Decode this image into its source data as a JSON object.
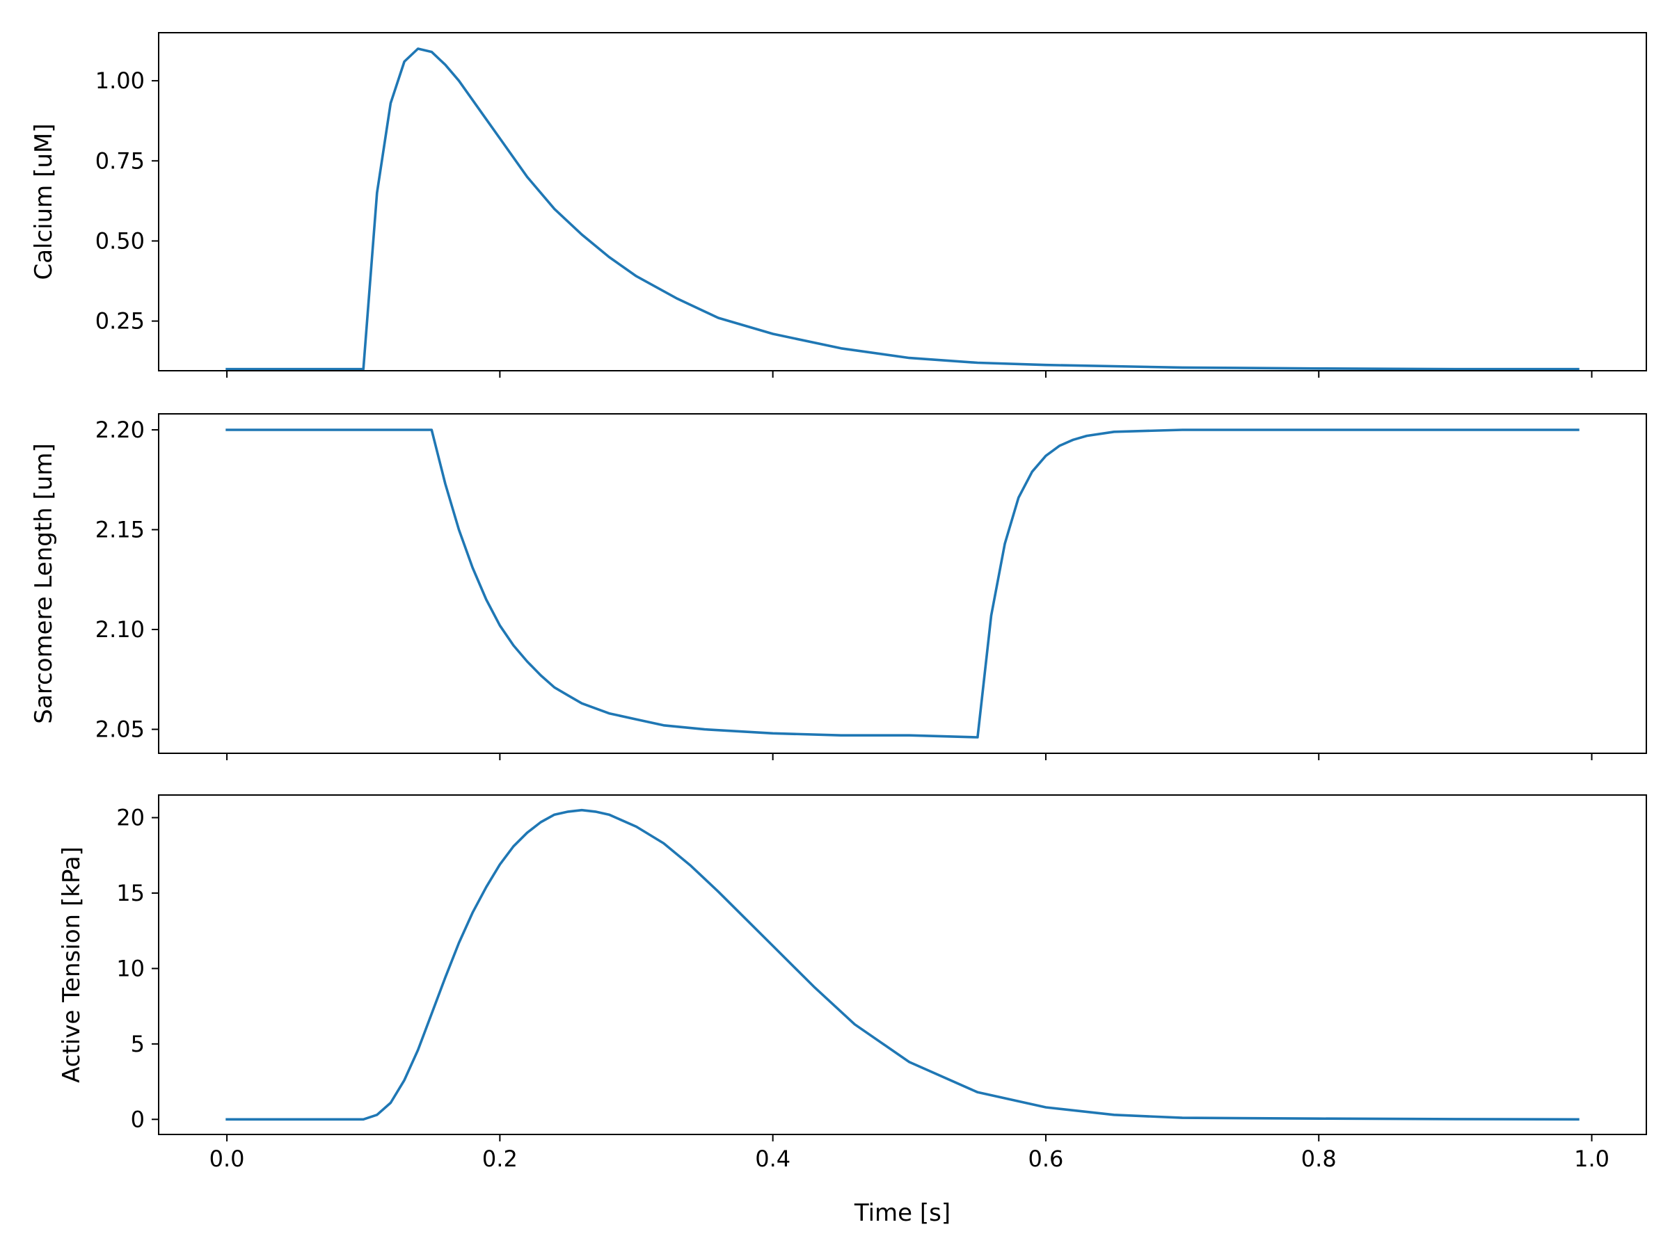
{
  "colors": {
    "series": "#1f77b4",
    "axes": "#000000",
    "background": "#ffffff"
  },
  "chart_data": [
    {
      "type": "line",
      "xlabel": "",
      "ylabel": "Calcium [uM]",
      "xlim": [
        -0.05,
        1.04
      ],
      "ylim": [
        0.095,
        1.15
      ],
      "xticks": [
        0.0,
        0.2,
        0.4,
        0.6,
        0.8,
        1.0
      ],
      "xtick_labels": [
        "",
        "",
        "",
        "",
        "",
        ""
      ],
      "yticks": [
        0.25,
        0.5,
        0.75,
        1.0
      ],
      "ytick_labels": [
        "0.25",
        "0.50",
        "0.75",
        "1.00"
      ],
      "grid": false,
      "series": [
        {
          "x": [
            0.0,
            0.1,
            0.11,
            0.12,
            0.13,
            0.14,
            0.15,
            0.16,
            0.17,
            0.18,
            0.19,
            0.2,
            0.22,
            0.24,
            0.26,
            0.28,
            0.3,
            0.33,
            0.36,
            0.4,
            0.45,
            0.5,
            0.55,
            0.6,
            0.7,
            0.8,
            0.9,
            0.99
          ],
          "y": [
            0.1,
            0.1,
            0.65,
            0.93,
            1.06,
            1.1,
            1.09,
            1.05,
            1.0,
            0.94,
            0.88,
            0.82,
            0.7,
            0.6,
            0.52,
            0.45,
            0.39,
            0.32,
            0.26,
            0.21,
            0.165,
            0.135,
            0.12,
            0.113,
            0.105,
            0.102,
            0.1,
            0.1
          ]
        }
      ]
    },
    {
      "type": "line",
      "xlabel": "",
      "ylabel": "Sarcomere Length [um]",
      "xlim": [
        -0.05,
        1.04
      ],
      "ylim": [
        2.038,
        2.208
      ],
      "xticks": [
        0.0,
        0.2,
        0.4,
        0.6,
        0.8,
        1.0
      ],
      "xtick_labels": [
        "",
        "",
        "",
        "",
        "",
        ""
      ],
      "yticks": [
        2.05,
        2.1,
        2.15,
        2.2
      ],
      "ytick_labels": [
        "2.05",
        "2.10",
        "2.15",
        "2.20"
      ],
      "grid": false,
      "series": [
        {
          "x": [
            0.0,
            0.15,
            0.16,
            0.17,
            0.18,
            0.19,
            0.2,
            0.21,
            0.22,
            0.23,
            0.24,
            0.25,
            0.26,
            0.28,
            0.3,
            0.32,
            0.35,
            0.4,
            0.45,
            0.5,
            0.55,
            0.56,
            0.57,
            0.58,
            0.59,
            0.6,
            0.61,
            0.62,
            0.63,
            0.65,
            0.7,
            0.8,
            0.99
          ],
          "y": [
            2.2,
            2.2,
            2.173,
            2.15,
            2.131,
            2.115,
            2.102,
            2.092,
            2.084,
            2.077,
            2.071,
            2.067,
            2.063,
            2.058,
            2.055,
            2.052,
            2.05,
            2.048,
            2.047,
            2.047,
            2.046,
            2.107,
            2.143,
            2.166,
            2.179,
            2.187,
            2.192,
            2.195,
            2.197,
            2.199,
            2.2,
            2.2,
            2.2
          ]
        }
      ]
    },
    {
      "type": "line",
      "xlabel": "Time [s]",
      "ylabel": "Active Tension [kPa]",
      "xlim": [
        -0.05,
        1.04
      ],
      "ylim": [
        -1.0,
        21.5
      ],
      "xticks": [
        0.0,
        0.2,
        0.4,
        0.6,
        0.8,
        1.0
      ],
      "xtick_labels": [
        "0.0",
        "0.2",
        "0.4",
        "0.6",
        "0.8",
        "1.0"
      ],
      "yticks": [
        0,
        5,
        10,
        15,
        20
      ],
      "ytick_labels": [
        "0",
        "5",
        "10",
        "15",
        "20"
      ],
      "grid": false,
      "series": [
        {
          "x": [
            0.0,
            0.1,
            0.11,
            0.12,
            0.13,
            0.14,
            0.15,
            0.16,
            0.17,
            0.18,
            0.19,
            0.2,
            0.21,
            0.22,
            0.23,
            0.24,
            0.25,
            0.26,
            0.27,
            0.28,
            0.3,
            0.32,
            0.34,
            0.36,
            0.38,
            0.4,
            0.43,
            0.46,
            0.5,
            0.55,
            0.6,
            0.65,
            0.7,
            0.8,
            0.9,
            0.99
          ],
          "y": [
            0.0,
            0.0,
            0.3,
            1.1,
            2.6,
            4.6,
            7.0,
            9.4,
            11.7,
            13.7,
            15.4,
            16.9,
            18.1,
            19.0,
            19.7,
            20.2,
            20.4,
            20.5,
            20.4,
            20.2,
            19.4,
            18.3,
            16.8,
            15.1,
            13.3,
            11.5,
            8.8,
            6.3,
            3.8,
            1.8,
            0.8,
            0.3,
            0.1,
            0.05,
            0.02,
            0.0
          ]
        }
      ]
    }
  ]
}
